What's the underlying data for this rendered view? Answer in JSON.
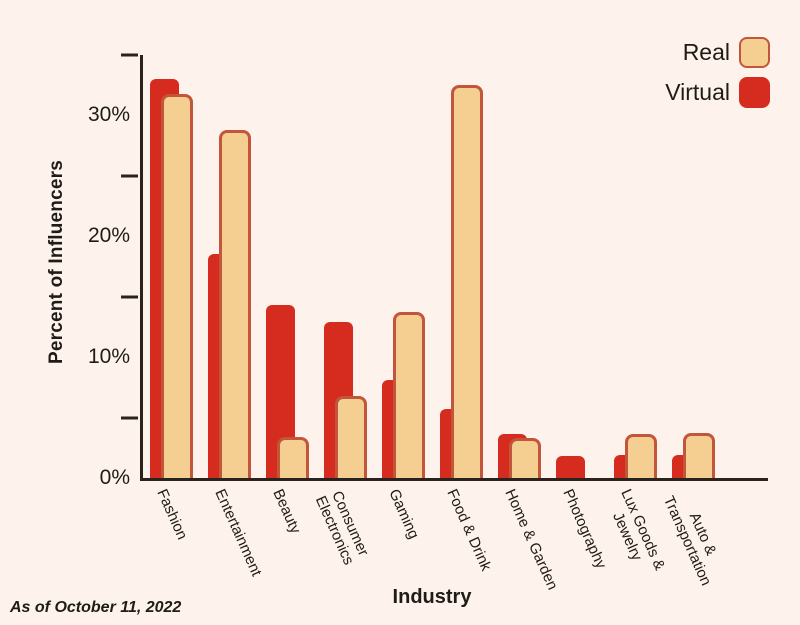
{
  "chart_data": {
    "type": "bar",
    "title": "",
    "xlabel": "Industry",
    "ylabel": "Percent of Influencers",
    "ylim": [
      0,
      35
    ],
    "grid": false,
    "legend_position": "top-right",
    "categories": [
      "Fashion",
      "Entertainment",
      "Beauty",
      "Consumer\nElectronics",
      "Gaming",
      "Food & Drink",
      "Home & Garden",
      "Photography",
      "Lux Goods &\nJewelry",
      "Auto &\nTransportation"
    ],
    "series": [
      {
        "name": "Real",
        "color": "#f5cf92",
        "values": [
          31.8,
          28.8,
          3.4,
          6.8,
          13.7,
          32.5,
          3.3,
          0,
          3.6,
          3.7
        ]
      },
      {
        "name": "Virtual",
        "color": "#d62b1f",
        "values": [
          33,
          18.5,
          14.3,
          12.9,
          8.1,
          5.7,
          3.6,
          1.8,
          1.9,
          1.9
        ]
      }
    ],
    "y_ticks": [
      {
        "value": 0,
        "label": "0%"
      },
      {
        "value": 10,
        "label": "10%"
      },
      {
        "value": 20,
        "label": "20%"
      },
      {
        "value": 30,
        "label": "30%"
      }
    ],
    "y_minor_ticks": [
      5,
      15,
      25,
      35
    ]
  },
  "footer": {
    "note": "As of October 11, 2022"
  },
  "colors": {
    "background": "#fdf3ec",
    "axis": "#2a231d",
    "text": "#1f1b17",
    "real_fill": "#f5cf92",
    "real_border": "#c3553a",
    "virtual_fill": "#d62b1f"
  }
}
